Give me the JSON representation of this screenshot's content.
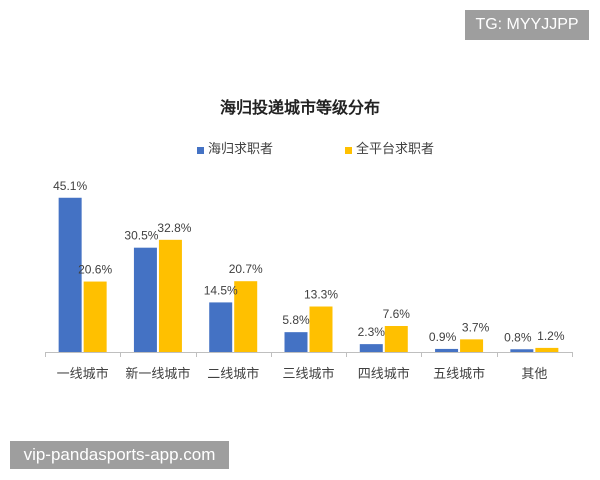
{
  "watermarks": {
    "top_right": "TG: MYYJJPP",
    "bottom_left": "vip-pandasports-app.com"
  },
  "chart_data": {
    "type": "bar",
    "title": "海归投递城市等级分布",
    "xlabel": "",
    "ylabel": "",
    "categories": [
      "一线城市",
      "新一线城市",
      "二线城市",
      "三线城市",
      "四线城市",
      "五线城市",
      "其他"
    ],
    "series": [
      {
        "name": "海归求职者",
        "color": "#4472C4",
        "values": [
          45.1,
          30.5,
          14.5,
          5.8,
          2.3,
          0.9,
          0.8
        ],
        "labels": [
          "45.1%",
          "30.5%",
          "14.5%",
          "5.8%",
          "2.3%",
          "0.9%",
          "0.8%"
        ]
      },
      {
        "name": "全平台求职者",
        "color": "#FFC000",
        "values": [
          20.6,
          32.8,
          20.7,
          13.3,
          7.6,
          3.7,
          1.2
        ],
        "labels": [
          "20.6%",
          "32.8%",
          "20.7%",
          "13.3%",
          "7.6%",
          "3.7%",
          "1.2%"
        ]
      }
    ],
    "ylim": [
      0,
      50
    ],
    "legend": "top",
    "grid": false,
    "y_axis_visible": false
  }
}
